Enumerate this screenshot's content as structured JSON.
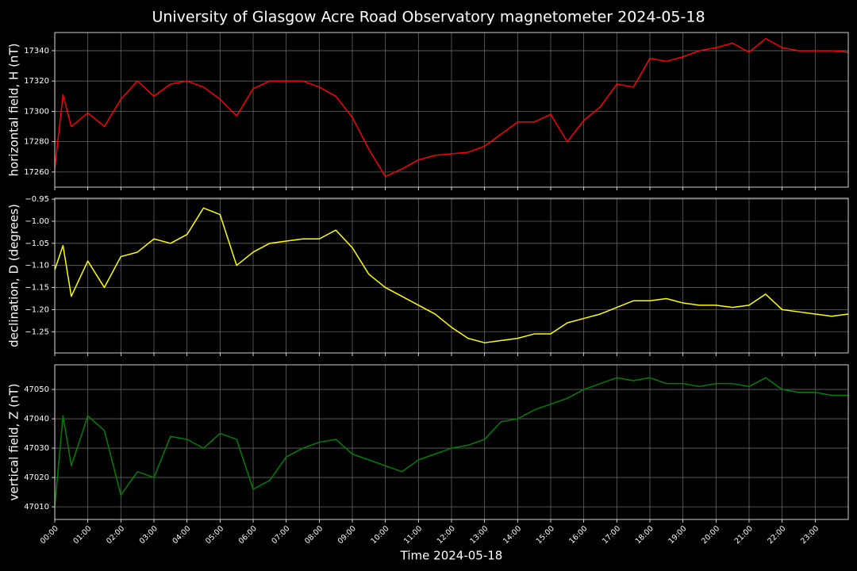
{
  "title": "University of Glasgow Acre Road Observatory magnetometer 2024-05-18",
  "chart_data": [
    {
      "type": "line",
      "ylabel": "horizontal field, H (nT)",
      "color": "#ff0000",
      "grid": true,
      "x": [
        0,
        0.25,
        0.5,
        1,
        1.5,
        2,
        2.5,
        3,
        3.5,
        4,
        4.5,
        5,
        5.5,
        6,
        6.5,
        7,
        7.5,
        8,
        8.5,
        9,
        9.5,
        10,
        10.5,
        11,
        11.5,
        12,
        12.5,
        13,
        13.5,
        14,
        14.5,
        15,
        15.5,
        16,
        16.5,
        17,
        17.5,
        18,
        18.5,
        19,
        19.5,
        20,
        20.5,
        21,
        21.5,
        22,
        22.5,
        23,
        23.5,
        24
      ],
      "values": [
        17262,
        17311,
        17290,
        17299,
        17290,
        17308,
        17320,
        17310,
        17318,
        17320,
        17316,
        17308,
        17297,
        17315,
        17320,
        17320,
        17320,
        17316,
        17310,
        17296,
        17275,
        17257,
        17262,
        17268,
        17271,
        17272,
        17273,
        17277,
        17285,
        17293,
        17293,
        17298,
        17280,
        17294,
        17303,
        17318,
        17316,
        17335,
        17333,
        17336,
        17340,
        17342,
        17345,
        17339,
        17348,
        17342,
        17340,
        17340,
        17340,
        17339
      ],
      "xlim": [
        0,
        24
      ],
      "xticks": [
        0,
        1,
        2,
        3,
        4,
        5,
        6,
        7,
        8,
        9,
        10,
        11,
        12,
        13,
        14,
        15,
        16,
        17,
        18,
        19,
        20,
        21,
        22,
        23
      ],
      "ylim": [
        17250,
        17352
      ],
      "yticks": [
        17260,
        17280,
        17300,
        17320,
        17340
      ]
    },
    {
      "type": "line",
      "ylabel": "declination, D (degrees)",
      "color": "#ffff00",
      "grid": true,
      "x": [
        0,
        0.25,
        0.5,
        1,
        1.5,
        2,
        2.5,
        3,
        3.5,
        4,
        4.5,
        5,
        5.5,
        6,
        6.5,
        7,
        7.5,
        8,
        8.5,
        9,
        9.5,
        10,
        10.5,
        11,
        11.5,
        12,
        12.5,
        13,
        13.5,
        14,
        14.5,
        15,
        15.5,
        16,
        16.5,
        17,
        17.5,
        18,
        18.5,
        19,
        19.5,
        20,
        20.5,
        21,
        21.5,
        22,
        22.5,
        23,
        23.5,
        24
      ],
      "values": [
        -1.11,
        -1.055,
        -1.17,
        -1.09,
        -1.15,
        -1.08,
        -1.07,
        -1.04,
        -1.05,
        -1.03,
        -0.97,
        -0.985,
        -1.1,
        -1.07,
        -1.05,
        -1.045,
        -1.04,
        -1.04,
        -1.02,
        -1.06,
        -1.12,
        -1.15,
        -1.17,
        -1.19,
        -1.21,
        -1.24,
        -1.265,
        -1.275,
        -1.27,
        -1.265,
        -1.255,
        -1.255,
        -1.23,
        -1.22,
        -1.21,
        -1.195,
        -1.18,
        -1.18,
        -1.175,
        -1.185,
        -1.19,
        -1.19,
        -1.195,
        -1.19,
        -1.165,
        -1.2,
        -1.205,
        -1.21,
        -1.215,
        -1.21
      ],
      "xlim": [
        0,
        24
      ],
      "xticks": [
        0,
        1,
        2,
        3,
        4,
        5,
        6,
        7,
        8,
        9,
        10,
        11,
        12,
        13,
        14,
        15,
        16,
        17,
        18,
        19,
        20,
        21,
        22,
        23
      ],
      "ylim": [
        -1.298,
        -0.948
      ],
      "yticks": [
        {
          "value": -0.95,
          "label": "−0.95"
        },
        {
          "value": -1.0,
          "label": "−1.00"
        },
        {
          "value": -1.05,
          "label": "−1.05"
        },
        {
          "value": -1.1,
          "label": "−1.10"
        },
        {
          "value": -1.15,
          "label": "−1.15"
        },
        {
          "value": -1.2,
          "label": "−1.20"
        },
        {
          "value": -1.25,
          "label": "−1.25"
        }
      ]
    },
    {
      "type": "line",
      "ylabel": "vertical field, Z (nT)",
      "xlabel": "Time 2024-05-18",
      "color": "#008000",
      "grid": true,
      "x": [
        0,
        0.25,
        0.5,
        1,
        1.5,
        2,
        2.5,
        3,
        3.5,
        4,
        4.5,
        5,
        5.5,
        6,
        6.5,
        7,
        7.5,
        8,
        8.5,
        9,
        9.5,
        10,
        10.5,
        11,
        11.5,
        12,
        12.5,
        13,
        13.5,
        14,
        14.5,
        15,
        15.5,
        16,
        16.5,
        17,
        17.5,
        18,
        18.5,
        19,
        19.5,
        20,
        20.5,
        21,
        21.5,
        22,
        22.5,
        23,
        23.5,
        24
      ],
      "values": [
        47010,
        47041,
        47024,
        47041,
        47036,
        47014,
        47022,
        47020,
        47034,
        47033,
        47030,
        47035,
        47033,
        47016,
        47019,
        47027,
        47030,
        47032,
        47033,
        47028,
        47026,
        47024,
        47022,
        47026,
        47028,
        47030,
        47031,
        47033,
        47039,
        47040,
        47043,
        47045,
        47047,
        47050,
        47052,
        47054,
        47053,
        47054,
        47052,
        47052,
        47051,
        47052,
        47052,
        47051,
        47054,
        47050,
        47049,
        47049,
        47048,
        47048
      ],
      "xlim": [
        0,
        24
      ],
      "xticks": [
        {
          "value": 0,
          "label": "00:00"
        },
        {
          "value": 1,
          "label": "01:00"
        },
        {
          "value": 2,
          "label": "02:00"
        },
        {
          "value": 3,
          "label": "03:00"
        },
        {
          "value": 4,
          "label": "04:00"
        },
        {
          "value": 5,
          "label": "05:00"
        },
        {
          "value": 6,
          "label": "06:00"
        },
        {
          "value": 7,
          "label": "07:00"
        },
        {
          "value": 8,
          "label": "08:00"
        },
        {
          "value": 9,
          "label": "09:00"
        },
        {
          "value": 10,
          "label": "10:00"
        },
        {
          "value": 11,
          "label": "11:00"
        },
        {
          "value": 12,
          "label": "12:00"
        },
        {
          "value": 13,
          "label": "13:00"
        },
        {
          "value": 14,
          "label": "14:00"
        },
        {
          "value": 15,
          "label": "15:00"
        },
        {
          "value": 16,
          "label": "16:00"
        },
        {
          "value": 17,
          "label": "17:00"
        },
        {
          "value": 18,
          "label": "18:00"
        },
        {
          "value": 19,
          "label": "19:00"
        },
        {
          "value": 20,
          "label": "20:00"
        },
        {
          "value": 21,
          "label": "21:00"
        },
        {
          "value": 22,
          "label": "22:00"
        },
        {
          "value": 23,
          "label": "23:00"
        }
      ],
      "ylim": [
        47005.7,
        47058.4
      ],
      "yticks": [
        47010,
        47020,
        47030,
        47040,
        47050
      ]
    }
  ]
}
